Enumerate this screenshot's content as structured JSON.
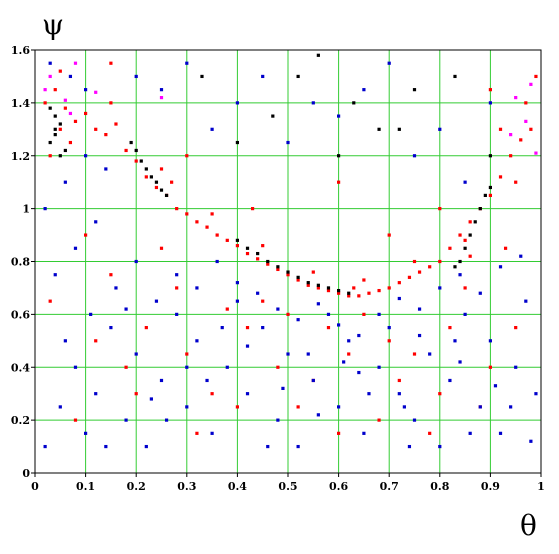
{
  "chart_data": {
    "type": "scatter",
    "title": "",
    "xlabel": "θ",
    "ylabel": "ψ",
    "xlim": [
      0,
      1
    ],
    "ylim": [
      0,
      1.6
    ],
    "x_ticks": [
      "0",
      "0.1",
      "0.2",
      "0.3",
      "0.4",
      "0.5",
      "0.6",
      "0.7",
      "0.8",
      "0.9",
      "1"
    ],
    "y_ticks": [
      "0",
      "0.2",
      "0.4",
      "0.6",
      "0.8",
      "1",
      "1.2",
      "1.4",
      "1.6"
    ],
    "grid": true,
    "grid_color": "#33cc33",
    "legend": "none",
    "series": [
      {
        "color": "#ff0000",
        "points": [
          [
            0.02,
            1.4
          ],
          [
            0.04,
            1.45
          ],
          [
            0.06,
            1.38
          ],
          [
            0.08,
            1.33
          ],
          [
            0.1,
            1.36
          ],
          [
            0.12,
            1.3
          ],
          [
            0.14,
            1.28
          ],
          [
            0.16,
            1.32
          ],
          [
            0.18,
            1.22
          ],
          [
            0.2,
            1.18
          ],
          [
            0.22,
            1.12
          ],
          [
            0.24,
            1.08
          ],
          [
            0.26,
            1.05
          ],
          [
            0.28,
            1.0
          ],
          [
            0.3,
            0.98
          ],
          [
            0.32,
            0.95
          ],
          [
            0.34,
            0.93
          ],
          [
            0.36,
            0.9
          ],
          [
            0.38,
            0.88
          ],
          [
            0.4,
            0.86
          ],
          [
            0.42,
            0.83
          ],
          [
            0.44,
            0.81
          ],
          [
            0.46,
            0.79
          ],
          [
            0.48,
            0.77
          ],
          [
            0.5,
            0.75
          ],
          [
            0.52,
            0.73
          ],
          [
            0.54,
            0.71
          ],
          [
            0.56,
            0.7
          ],
          [
            0.58,
            0.69
          ],
          [
            0.6,
            0.68
          ],
          [
            0.62,
            0.67
          ],
          [
            0.64,
            0.67
          ],
          [
            0.66,
            0.68
          ],
          [
            0.68,
            0.69
          ],
          [
            0.7,
            0.7
          ],
          [
            0.72,
            0.72
          ],
          [
            0.74,
            0.74
          ],
          [
            0.76,
            0.76
          ],
          [
            0.78,
            0.78
          ],
          [
            0.8,
            0.8
          ],
          [
            0.82,
            0.85
          ],
          [
            0.84,
            0.9
          ],
          [
            0.86,
            0.95
          ],
          [
            0.88,
            1.0
          ],
          [
            0.9,
            1.05
          ],
          [
            0.92,
            1.12
          ],
          [
            0.94,
            1.2
          ],
          [
            0.96,
            1.26
          ],
          [
            0.98,
            1.3
          ],
          [
            0.03,
            1.2
          ],
          [
            0.05,
            1.52
          ],
          [
            0.07,
            1.25
          ],
          [
            0.15,
            1.4
          ],
          [
            0.25,
            1.15
          ],
          [
            0.35,
            0.98
          ],
          [
            0.45,
            0.86
          ],
          [
            0.55,
            0.76
          ],
          [
            0.65,
            0.73
          ],
          [
            0.75,
            0.8
          ],
          [
            0.85,
            0.88
          ],
          [
            0.95,
            1.1
          ],
          [
            0.99,
            1.5
          ],
          [
            0.97,
            1.4
          ],
          [
            0.92,
            1.3
          ],
          [
            0.12,
            0.5
          ],
          [
            0.2,
            0.3
          ],
          [
            0.3,
            0.45
          ],
          [
            0.42,
            0.55
          ],
          [
            0.52,
            0.25
          ],
          [
            0.62,
            0.45
          ],
          [
            0.72,
            0.35
          ],
          [
            0.82,
            0.55
          ],
          [
            0.9,
            0.4
          ],
          [
            0.15,
            0.75
          ],
          [
            0.28,
            0.7
          ],
          [
            0.38,
            0.62
          ],
          [
            0.48,
            0.4
          ],
          [
            0.58,
            0.55
          ],
          [
            0.68,
            0.2
          ],
          [
            0.78,
            0.15
          ],
          [
            0.88,
            0.25
          ],
          [
            0.08,
            0.2
          ],
          [
            0.25,
            0.85
          ],
          [
            0.35,
            0.3
          ],
          [
            0.45,
            0.65
          ],
          [
            0.55,
            0.35
          ],
          [
            0.65,
            0.6
          ],
          [
            0.75,
            0.45
          ],
          [
            0.85,
            0.7
          ],
          [
            0.95,
            0.55
          ],
          [
            0.03,
            0.65
          ],
          [
            0.1,
            0.9
          ],
          [
            0.22,
            0.55
          ],
          [
            0.32,
            0.15
          ],
          [
            0.4,
            0.25
          ],
          [
            0.6,
            0.15
          ],
          [
            0.7,
            0.5
          ],
          [
            0.8,
            0.3
          ],
          [
            0.93,
            0.85
          ],
          [
            0.18,
            0.4
          ],
          [
            0.5,
            0.6
          ],
          [
            0.43,
            1.0
          ],
          [
            0.3,
            1.2
          ],
          [
            0.7,
            0.9
          ],
          [
            0.6,
            1.1
          ],
          [
            0.8,
            1.0
          ],
          [
            0.15,
            1.55
          ],
          [
            0.9,
            1.45
          ],
          [
            0.05,
            1.3
          ],
          [
            0.27,
            1.1
          ],
          [
            0.86,
            0.82
          ],
          [
            0.63,
            0.7
          ]
        ]
      },
      {
        "color": "#0000cc",
        "points": [
          [
            0.02,
            0.1
          ],
          [
            0.05,
            0.25
          ],
          [
            0.08,
            0.4
          ],
          [
            0.1,
            0.15
          ],
          [
            0.12,
            0.3
          ],
          [
            0.15,
            0.55
          ],
          [
            0.18,
            0.2
          ],
          [
            0.2,
            0.45
          ],
          [
            0.22,
            0.1
          ],
          [
            0.25,
            0.35
          ],
          [
            0.28,
            0.6
          ],
          [
            0.3,
            0.25
          ],
          [
            0.32,
            0.5
          ],
          [
            0.35,
            0.15
          ],
          [
            0.38,
            0.4
          ],
          [
            0.4,
            0.65
          ],
          [
            0.42,
            0.3
          ],
          [
            0.45,
            0.55
          ],
          [
            0.48,
            0.2
          ],
          [
            0.5,
            0.45
          ],
          [
            0.52,
            0.1
          ],
          [
            0.55,
            0.35
          ],
          [
            0.58,
            0.6
          ],
          [
            0.6,
            0.25
          ],
          [
            0.62,
            0.5
          ],
          [
            0.65,
            0.15
          ],
          [
            0.68,
            0.4
          ],
          [
            0.7,
            0.55
          ],
          [
            0.72,
            0.3
          ],
          [
            0.75,
            0.2
          ],
          [
            0.78,
            0.45
          ],
          [
            0.8,
            0.1
          ],
          [
            0.82,
            0.35
          ],
          [
            0.85,
            0.6
          ],
          [
            0.88,
            0.25
          ],
          [
            0.9,
            0.5
          ],
          [
            0.92,
            0.15
          ],
          [
            0.95,
            0.4
          ],
          [
            0.97,
            0.65
          ],
          [
            0.99,
            0.3
          ],
          [
            0.04,
            0.75
          ],
          [
            0.08,
            0.85
          ],
          [
            0.12,
            0.95
          ],
          [
            0.16,
            0.7
          ],
          [
            0.2,
            0.8
          ],
          [
            0.24,
            0.65
          ],
          [
            0.28,
            0.75
          ],
          [
            0.32,
            0.7
          ],
          [
            0.36,
            0.8
          ],
          [
            0.4,
            0.72
          ],
          [
            0.44,
            0.68
          ],
          [
            0.48,
            0.62
          ],
          [
            0.52,
            0.58
          ],
          [
            0.56,
            0.64
          ],
          [
            0.6,
            0.56
          ],
          [
            0.64,
            0.52
          ],
          [
            0.68,
            0.6
          ],
          [
            0.72,
            0.66
          ],
          [
            0.76,
            0.62
          ],
          [
            0.8,
            0.7
          ],
          [
            0.84,
            0.75
          ],
          [
            0.88,
            0.68
          ],
          [
            0.92,
            0.78
          ],
          [
            0.96,
            0.82
          ],
          [
            0.06,
            1.1
          ],
          [
            0.1,
            1.2
          ],
          [
            0.14,
            1.15
          ],
          [
            0.02,
            1.0
          ],
          [
            0.03,
            1.55
          ],
          [
            0.07,
            1.5
          ],
          [
            0.06,
            0.5
          ],
          [
            0.14,
            0.1
          ],
          [
            0.26,
            0.2
          ],
          [
            0.34,
            0.35
          ],
          [
            0.46,
            0.1
          ],
          [
            0.54,
            0.45
          ],
          [
            0.66,
            0.3
          ],
          [
            0.74,
            0.1
          ],
          [
            0.86,
            0.15
          ],
          [
            0.94,
            0.25
          ],
          [
            0.18,
            0.62
          ],
          [
            0.3,
            0.4
          ],
          [
            0.42,
            0.48
          ],
          [
            0.56,
            0.22
          ],
          [
            0.64,
            0.38
          ],
          [
            0.76,
            0.52
          ],
          [
            0.84,
            0.42
          ],
          [
            0.98,
            0.12
          ],
          [
            0.45,
            1.5
          ],
          [
            0.55,
            1.4
          ],
          [
            0.65,
            1.45
          ],
          [
            0.35,
            1.3
          ],
          [
            0.75,
            1.2
          ],
          [
            0.85,
            1.1
          ],
          [
            0.25,
            1.45
          ],
          [
            0.5,
            1.25
          ],
          [
            0.6,
            1.35
          ],
          [
            0.7,
            1.55
          ],
          [
            0.4,
            1.4
          ],
          [
            0.8,
            1.3
          ],
          [
            0.3,
            1.55
          ],
          [
            0.9,
            1.4
          ],
          [
            0.2,
            1.5
          ],
          [
            0.1,
            1.45
          ],
          [
            0.11,
            0.6
          ],
          [
            0.23,
            0.28
          ],
          [
            0.37,
            0.55
          ],
          [
            0.49,
            0.32
          ],
          [
            0.61,
            0.42
          ],
          [
            0.73,
            0.25
          ],
          [
            0.83,
            0.5
          ],
          [
            0.91,
            0.33
          ]
        ]
      },
      {
        "color": "#000000",
        "points": [
          [
            0.03,
            1.25
          ],
          [
            0.04,
            1.3
          ],
          [
            0.05,
            1.2
          ],
          [
            0.04,
            1.35
          ],
          [
            0.05,
            1.32
          ],
          [
            0.03,
            1.38
          ],
          [
            0.06,
            1.22
          ],
          [
            0.04,
            1.28
          ],
          [
            0.2,
            1.22
          ],
          [
            0.21,
            1.18
          ],
          [
            0.22,
            1.15
          ],
          [
            0.23,
            1.12
          ],
          [
            0.24,
            1.1
          ],
          [
            0.25,
            1.07
          ],
          [
            0.26,
            1.05
          ],
          [
            0.19,
            1.25
          ],
          [
            0.42,
            0.85
          ],
          [
            0.44,
            0.83
          ],
          [
            0.46,
            0.8
          ],
          [
            0.48,
            0.78
          ],
          [
            0.5,
            0.76
          ],
          [
            0.52,
            0.74
          ],
          [
            0.54,
            0.72
          ],
          [
            0.56,
            0.71
          ],
          [
            0.58,
            0.7
          ],
          [
            0.6,
            0.69
          ],
          [
            0.62,
            0.68
          ],
          [
            0.4,
            0.88
          ],
          [
            0.84,
            0.8
          ],
          [
            0.85,
            0.85
          ],
          [
            0.86,
            0.9
          ],
          [
            0.87,
            0.95
          ],
          [
            0.88,
            1.0
          ],
          [
            0.89,
            1.05
          ],
          [
            0.9,
            1.08
          ],
          [
            0.83,
            0.78
          ],
          [
            0.56,
            1.58
          ],
          [
            0.63,
            1.4
          ],
          [
            0.72,
            1.3
          ],
          [
            0.83,
            1.5
          ],
          [
            0.47,
            1.35
          ],
          [
            0.4,
            1.25
          ],
          [
            0.33,
            1.5
          ],
          [
            0.6,
            1.2
          ],
          [
            0.9,
            1.2
          ],
          [
            0.75,
            1.45
          ],
          [
            0.52,
            1.5
          ],
          [
            0.68,
            1.3
          ]
        ]
      },
      {
        "color": "#ff00ff",
        "points": [
          [
            0.02,
            1.45
          ],
          [
            0.06,
            1.41
          ],
          [
            0.97,
            1.33
          ],
          [
            0.95,
            1.42
          ],
          [
            0.12,
            1.44
          ],
          [
            0.99,
            1.21
          ],
          [
            0.03,
            1.5
          ],
          [
            0.08,
            1.55
          ],
          [
            0.98,
            1.47
          ],
          [
            0.94,
            1.28
          ],
          [
            0.07,
            1.36
          ],
          [
            0.25,
            1.42
          ]
        ]
      }
    ]
  }
}
